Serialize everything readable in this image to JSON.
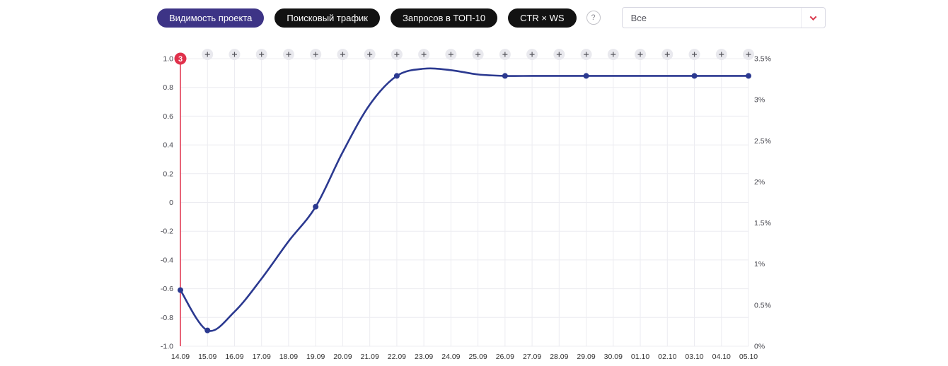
{
  "toolbar": {
    "tabs": [
      {
        "id": "project-visibility",
        "label": "Видимость проекта",
        "active": true
      },
      {
        "id": "search-traffic",
        "label": "Поисковый трафик",
        "active": false
      },
      {
        "id": "queries-top10",
        "label": "Запросов в ТОП-10",
        "active": false
      },
      {
        "id": "ctr-ws",
        "label": "CTR × WS",
        "active": false
      }
    ],
    "help_label": "?",
    "filter_value": "Все"
  },
  "chart_data": {
    "type": "line",
    "title": "",
    "xlabel": "",
    "ylabel": "",
    "x": [
      "14.09",
      "15.09",
      "16.09",
      "17.09",
      "18.09",
      "19.09",
      "20.09",
      "21.09",
      "22.09",
      "23.09",
      "24.09",
      "25.09",
      "26.09",
      "27.09",
      "28.09",
      "29.09",
      "30.09",
      "01.10",
      "02.10",
      "03.10",
      "04.10",
      "05.10"
    ],
    "series": [
      {
        "name": "Видимость проекта",
        "color": "#2b3990",
        "values": [
          -0.61,
          -0.89,
          -0.76,
          -0.53,
          -0.27,
          -0.03,
          0.35,
          0.68,
          0.88,
          0.93,
          0.92,
          0.89,
          0.88,
          0.88,
          0.88,
          0.88,
          0.88,
          0.88,
          0.88,
          0.88,
          0.88,
          0.88
        ],
        "marker_indices": [
          0,
          1,
          5,
          8,
          12,
          15,
          19,
          21
        ]
      }
    ],
    "left_axis": {
      "ticks": [
        "1.0",
        "0.8",
        "0.6",
        "0.4",
        "0.2",
        "0",
        "-0.2",
        "-0.4",
        "-0.6",
        "-0.8",
        "-1.0"
      ],
      "min": -1,
      "max": 1
    },
    "right_axis": {
      "ticks": [
        "3.5%",
        "3%",
        "2.5%",
        "2%",
        "1.5%",
        "1%",
        "0.5%",
        "0%"
      ]
    },
    "grid": true,
    "legend": "none",
    "event_marker": {
      "label": "3",
      "x": "14.09",
      "color": "#e0314b"
    },
    "add_note_symbol": "+",
    "colors": {
      "gridline": "#ececf1",
      "axis_text": "#44444c",
      "plus_circle": "#e9e9ee",
      "plus_glyph": "#55555c"
    }
  }
}
